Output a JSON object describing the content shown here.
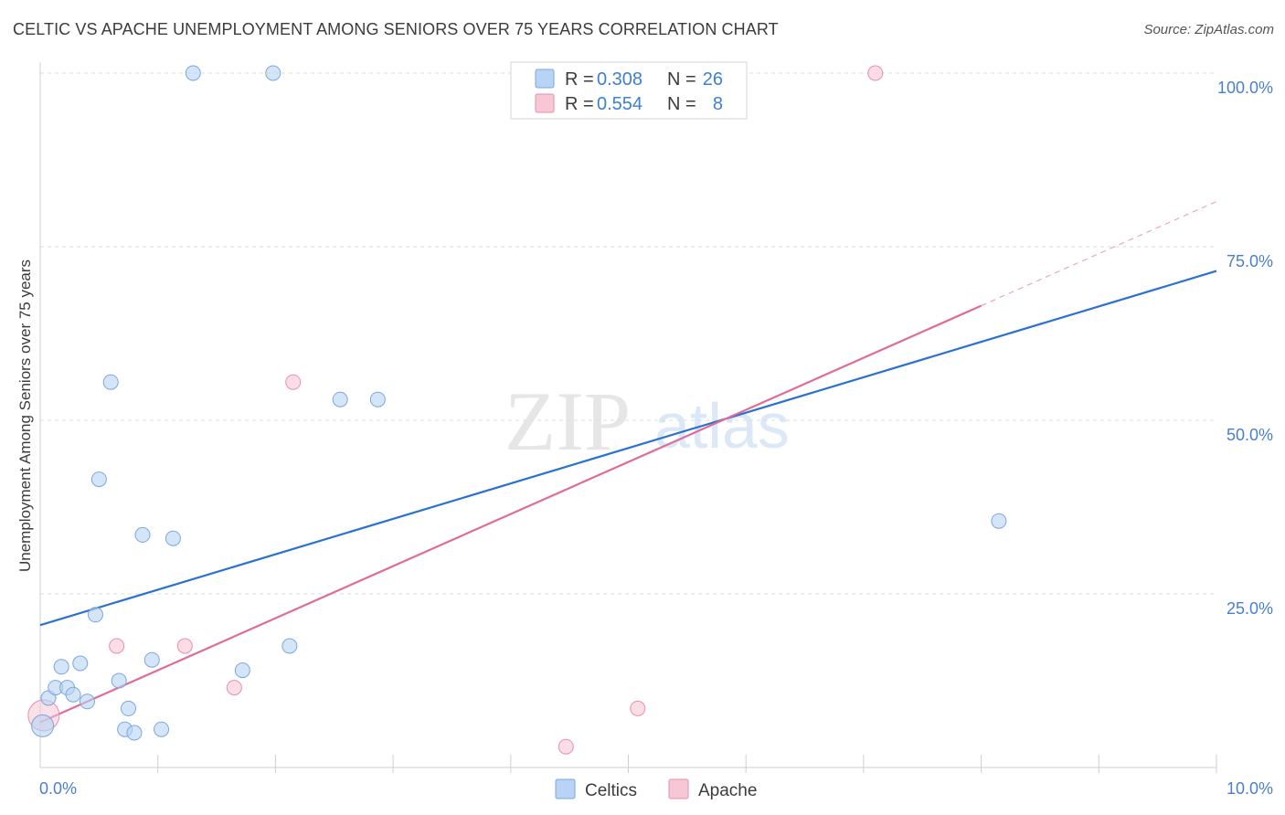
{
  "title": "CELTIC VS APACHE UNEMPLOYMENT AMONG SENIORS OVER 75 YEARS CORRELATION CHART",
  "source": "Source: ZipAtlas.com",
  "watermark": {
    "zip": "ZIP",
    "atlas": "atlas"
  },
  "colors": {
    "celtics_fill": "#b8d3f4",
    "celtics_stroke": "#7aa7e0",
    "celtics_line": "#2b72d0",
    "apache_fill": "#f8c7d6",
    "apache_stroke": "#e98fae",
    "apache_line": "#e06b98",
    "tick_text": "#4a7fcf",
    "grid": "#dddddd"
  },
  "legend_box": {
    "rows": [
      {
        "series": "celtics",
        "r_label": "R =",
        "r_value": "0.308",
        "n_label": "N =",
        "n_value": "26"
      },
      {
        "series": "apache",
        "r_label": "R =",
        "r_value": "0.554",
        "n_label": "N =",
        "n_value": "8"
      }
    ]
  },
  "chart_data": {
    "type": "scatter",
    "title": "CELTIC VS APACHE UNEMPLOYMENT AMONG SENIORS OVER 75 YEARS CORRELATION CHART",
    "xlabel": "",
    "ylabel": "Unemployment Among Seniors over 75 years",
    "xlim": [
      0,
      10
    ],
    "ylim": [
      0,
      100
    ],
    "x_tick_labels": [
      "0.0%",
      "10.0%"
    ],
    "y_ticks": [
      25,
      50,
      75,
      100
    ],
    "y_tick_labels": [
      "25.0%",
      "50.0%",
      "75.0%",
      "100.0%"
    ],
    "grid": true,
    "legend_position": "top-center and bottom",
    "series": [
      {
        "name": "Celtics",
        "points": [
          {
            "x": 0.02,
            "y": 6
          },
          {
            "x": 0.07,
            "y": 10
          },
          {
            "x": 0.13,
            "y": 11.5
          },
          {
            "x": 0.18,
            "y": 14.5
          },
          {
            "x": 0.23,
            "y": 11.5
          },
          {
            "x": 0.28,
            "y": 10.5
          },
          {
            "x": 0.34,
            "y": 15
          },
          {
            "x": 0.4,
            "y": 9.5
          },
          {
            "x": 0.47,
            "y": 22
          },
          {
            "x": 0.5,
            "y": 41.5
          },
          {
            "x": 0.6,
            "y": 55.5
          },
          {
            "x": 0.67,
            "y": 12.5
          },
          {
            "x": 0.72,
            "y": 5.5
          },
          {
            "x": 0.75,
            "y": 8.5
          },
          {
            "x": 0.8,
            "y": 5
          },
          {
            "x": 0.87,
            "y": 33.5
          },
          {
            "x": 0.95,
            "y": 15.5
          },
          {
            "x": 1.03,
            "y": 5.5
          },
          {
            "x": 1.13,
            "y": 33
          },
          {
            "x": 1.3,
            "y": 100
          },
          {
            "x": 1.72,
            "y": 14
          },
          {
            "x": 1.98,
            "y": 100
          },
          {
            "x": 2.12,
            "y": 17.5
          },
          {
            "x": 2.55,
            "y": 53
          },
          {
            "x": 2.87,
            "y": 53
          },
          {
            "x": 8.15,
            "y": 35.5
          }
        ],
        "trend": {
          "x": [
            0,
            10
          ],
          "y": [
            20.5,
            71.5
          ]
        }
      },
      {
        "name": "Apache",
        "points": [
          {
            "x": 0.03,
            "y": 7.5
          },
          {
            "x": 0.65,
            "y": 17.5
          },
          {
            "x": 1.23,
            "y": 17.5
          },
          {
            "x": 1.65,
            "y": 11.5
          },
          {
            "x": 2.15,
            "y": 55.5
          },
          {
            "x": 4.47,
            "y": 3
          },
          {
            "x": 5.08,
            "y": 8.5
          },
          {
            "x": 7.1,
            "y": 100
          }
        ],
        "trend": {
          "x": [
            0,
            8
          ],
          "y": [
            6.5,
            66.5
          ]
        },
        "trend_extension": {
          "x": [
            8,
            10
          ],
          "y": [
            66.5,
            81.5
          ]
        }
      }
    ]
  }
}
